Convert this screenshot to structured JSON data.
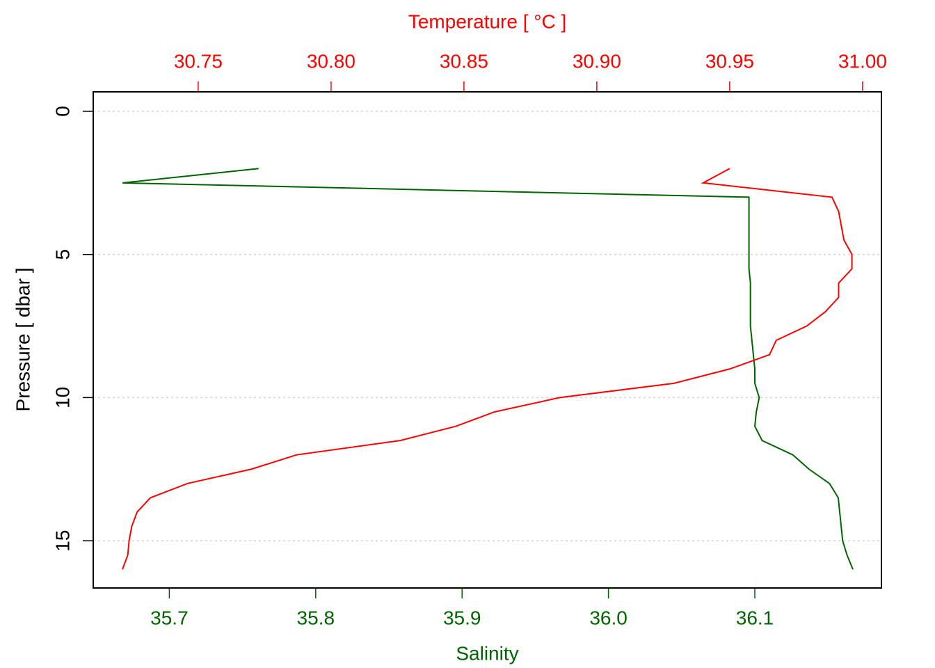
{
  "chart_data": {
    "type": "line",
    "ylabel": "Pressure [ dbar ]",
    "ylim": [
      16.65,
      -0.68
    ],
    "yticks": [
      0,
      5,
      10,
      15
    ],
    "grid": true,
    "y": [
      2,
      2.5,
      3,
      3.5,
      4,
      4.5,
      5,
      5.5,
      6,
      6.5,
      7,
      7.5,
      8,
      8.5,
      9,
      9.5,
      10,
      10.5,
      11,
      11.5,
      12,
      12.5,
      13,
      13.5,
      14,
      14.5,
      15,
      15.5,
      16
    ],
    "series": [
      {
        "xlabel": "Salinity",
        "color": "#006400",
        "side": "bottom",
        "xlim": [
          35.648,
          36.1865
        ],
        "xticks": [
          35.7,
          35.8,
          35.9,
          {
            "value": 36,
            "label": "36.0"
          },
          36.1
        ],
        "values": [
          35.761,
          35.668,
          36.096,
          36.096,
          36.096,
          36.096,
          36.096,
          36.096,
          36.097,
          36.097,
          36.097,
          36.097,
          36.098,
          36.099,
          36.1,
          36.1,
          36.103,
          36.101,
          36.1,
          36.105,
          36.126,
          36.137,
          36.151,
          36.157,
          36.158,
          36.159,
          36.16,
          36.163,
          36.167
        ]
      },
      {
        "xlabel": "Temperature [ °C ]",
        "color": "#ff0000",
        "side": "top",
        "xlim": [
          30.7105,
          31.0071
        ],
        "xticks": [
          30.75,
          {
            "value": 30.8,
            "label": "30.80"
          },
          30.85,
          {
            "value": 30.9,
            "label": "30.90"
          },
          30.95,
          {
            "value": 31,
            "label": "31.00"
          }
        ],
        "values": [
          30.95,
          30.94,
          30.9885,
          30.991,
          30.992,
          30.993,
          30.996,
          30.996,
          30.991,
          30.991,
          30.986,
          30.979,
          30.9675,
          30.965,
          30.95,
          30.929,
          30.886,
          30.8615,
          30.847,
          30.826,
          30.787,
          30.77,
          30.746,
          30.732,
          30.727,
          30.725,
          30.724,
          30.7235,
          30.7215
        ]
      }
    ]
  }
}
